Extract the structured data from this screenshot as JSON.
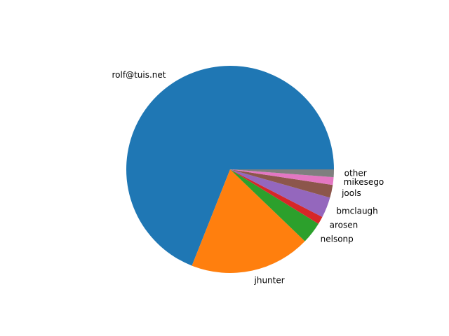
{
  "chart_data": {
    "type": "pie",
    "title": "",
    "start_angle_deg": 0,
    "direction": "counterclockwise",
    "slices": [
      {
        "label": "rolf@tuis.net",
        "value": 69.0,
        "color": "#1f77b4"
      },
      {
        "label": "jhunter",
        "value": 18.8,
        "color": "#ff7f0e"
      },
      {
        "label": "nelsonp",
        "value": 3.4,
        "color": "#2ca02c"
      },
      {
        "label": "arosen",
        "value": 1.2,
        "color": "#d62728"
      },
      {
        "label": "bmclaugh",
        "value": 3.2,
        "color": "#9467bd"
      },
      {
        "label": "jools",
        "value": 2.0,
        "color": "#8c564b"
      },
      {
        "label": "mikesego",
        "value": 1.2,
        "color": "#e377c2"
      },
      {
        "label": "other",
        "value": 1.2,
        "color": "#7f7f7f"
      }
    ]
  }
}
